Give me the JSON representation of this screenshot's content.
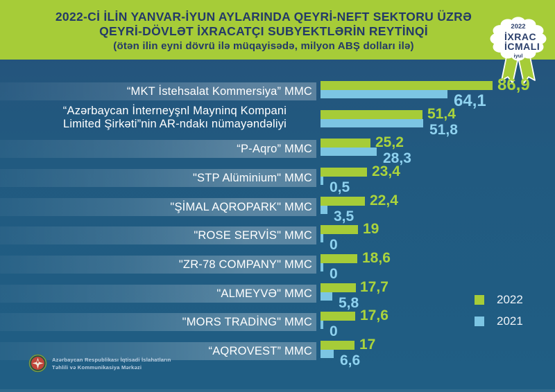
{
  "header": {
    "title_line1": "2022-Cİ İLİN YANVAR-İYUN AYLARINDA QEYRİ-NEFT SEKTORU ÜZRƏ",
    "title_line2": "QEYRİ-DÖVLƏT İXRACATÇI SUBYEKTLƏRİN REYTİNQİ",
    "subtitle": "(ötən ilin eyni dövrü ilə müqayisədə, milyon ABŞ dolları ilə)"
  },
  "badge": {
    "year": "2022",
    "line1": "İXRAC",
    "line2": "İCMALI",
    "month": "iyul"
  },
  "legend": {
    "items": [
      {
        "label": "2022",
        "color": "#a6cc38"
      },
      {
        "label": "2021",
        "color": "#7cc5e3"
      }
    ]
  },
  "footer": {
    "org_line1": "Azərbaycan Respublikası İqtisadi İslahatların",
    "org_line2": "Təhlili və Kommunikasiya Mərkəzi",
    "emblem": "azerbaijan-state-emblem-icon"
  },
  "colors": {
    "header_green": "#a6cc38",
    "background_blue": "#215e84",
    "bar_2022": "#a6cc38",
    "bar_2021": "#7cc5e3",
    "value_2022": "#abd43c",
    "value_2021": "#8fd2ef",
    "title_navy": "#243a67"
  },
  "chart_data": {
    "type": "bar",
    "orientation": "horizontal",
    "title": "2022-Cİ İLİN YANVAR-İYUN AYLARINDA QEYRİ-NEFT SEKTORU ÜZRƏ QEYRİ-DÖVLƏT İXRACATÇI SUBYEKTLƏRİN REYTİNQİ",
    "unit": "milyon ABŞ dolları",
    "legend_position": "bottom-right",
    "grid": false,
    "xlim": [
      0,
      90
    ],
    "series_names": [
      "2022",
      "2021"
    ],
    "rows": [
      {
        "label": "“MKT İstehsalat Kommersiya” MMC",
        "v2022": 86.9,
        "v2021": 64.1,
        "d2022": "86,9",
        "d2021": "64,1"
      },
      {
        "label": "“Azərbaycan İnterneyşnl Mayninq Kompani",
        "label2": "Limited Şirkəti”nin AR-ndakı nümayəndəliyi",
        "v2022": 51.4,
        "v2021": 51.8,
        "d2022": "51,4",
        "d2021": "51,8"
      },
      {
        "label": "“P-Aqro” MMC",
        "v2022": 25.2,
        "v2021": 28.3,
        "d2022": "25,2",
        "d2021": "28,3"
      },
      {
        "label": "\"STP Alüminium\" MMC",
        "v2022": 23.4,
        "v2021": 0.5,
        "d2022": "23,4",
        "d2021": "0,5"
      },
      {
        "label": "\"ŞİMAL AQROPARK\" MMC",
        "v2022": 22.4,
        "v2021": 3.5,
        "d2022": "22,4",
        "d2021": "3,5"
      },
      {
        "label": "\"ROSE SERVİS\" MMC",
        "v2022": 19,
        "v2021": 0,
        "d2022": "19",
        "d2021": "0"
      },
      {
        "label": "\"ZR-78 COMPANY\" MMC",
        "v2022": 18.6,
        "v2021": 0,
        "d2022": "18,6",
        "d2021": "0"
      },
      {
        "label": "\"ALMEYVƏ\" MMC",
        "v2022": 17.7,
        "v2021": 5.8,
        "d2022": "17,7",
        "d2021": "5,8"
      },
      {
        "label": "\"MORS TRADİNG\" MMC",
        "v2022": 17.6,
        "v2021": 0,
        "d2022": "17,6",
        "d2021": "0"
      },
      {
        "label": "“AQROVEST” MMC",
        "v2022": 17,
        "v2021": 6.6,
        "d2022": "17",
        "d2021": "6,6"
      }
    ]
  }
}
